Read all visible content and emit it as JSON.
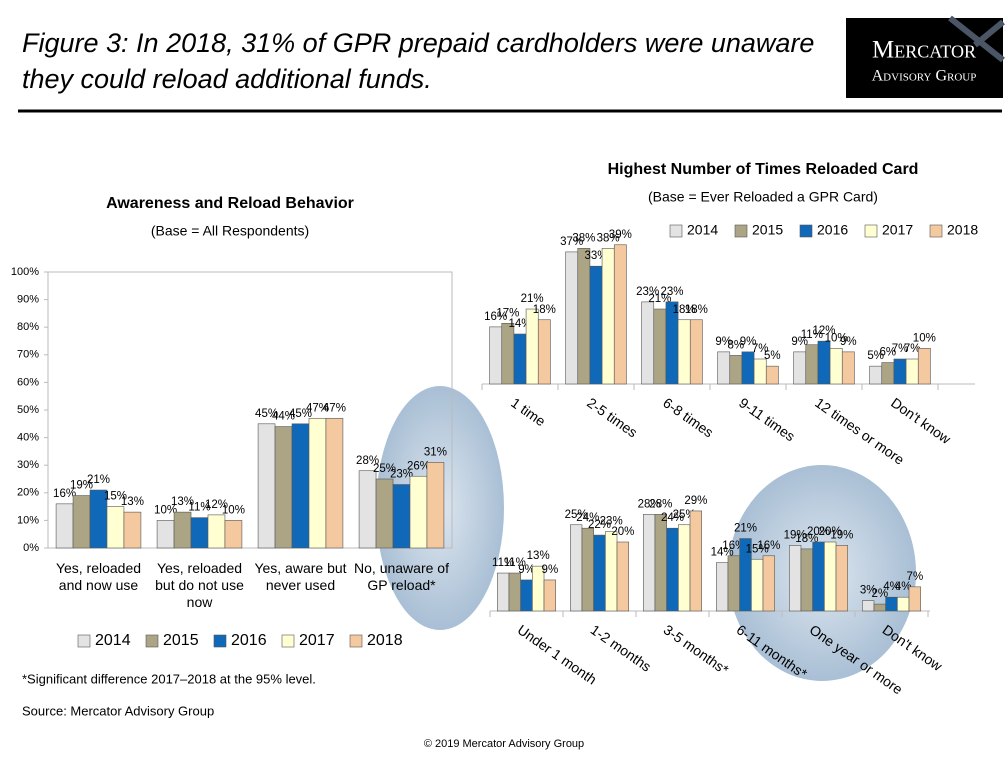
{
  "header": {
    "title": [
      "Figure 3: In 2018, 31% of GPR prepaid cardholders were unaware",
      "they could reload additional funds."
    ],
    "logo": [
      "Mercator",
      "Advisory Group"
    ]
  },
  "chart_data": [
    {
      "type": "bar",
      "title": "Awareness and Reload Behavior",
      "subtitle": "(Base = All Respondents)",
      "categories": [
        "Yes, reloaded and now use",
        "Yes, reloaded but do not use now",
        "Yes, aware but never used",
        "No, unaware of GP reload*"
      ],
      "series": [
        {
          "name": "2014",
          "color": "#e3e3e3",
          "values": [
            16,
            10,
            45,
            28
          ],
          "value_labels": [
            "16%",
            "10%",
            "45%",
            "28%"
          ]
        },
        {
          "name": "2015",
          "color": "#aba585",
          "values": [
            19,
            13,
            44,
            25
          ],
          "value_labels": [
            "19%",
            "13%",
            "44%",
            "25%"
          ]
        },
        {
          "name": "2016",
          "color": "#1068b8",
          "values": [
            21,
            11,
            45,
            23
          ],
          "value_labels": [
            "21%",
            "11%",
            "45%",
            "23%"
          ]
        },
        {
          "name": "2017",
          "color": "#ffffd2",
          "values": [
            15,
            12,
            47,
            26
          ],
          "value_labels": [
            "15%",
            "12%",
            "47%",
            "26%"
          ]
        },
        {
          "name": "2018",
          "color": "#f5c9a0",
          "values": [
            13,
            10,
            47,
            31
          ],
          "value_labels": [
            "13%",
            "10%",
            "47%",
            "31%"
          ]
        }
      ],
      "ylim": [
        0,
        100
      ],
      "yticks": [
        {
          "value": 0,
          "label": "0%"
        },
        {
          "value": 10,
          "label": "10%"
        },
        {
          "value": 20,
          "label": "20%"
        },
        {
          "value": 30,
          "label": "30%"
        },
        {
          "value": 40,
          "label": "40%"
        },
        {
          "value": 50,
          "label": "50%"
        },
        {
          "value": 60,
          "label": "60%"
        },
        {
          "value": 70,
          "label": "70%"
        },
        {
          "value": 80,
          "label": "80%"
        },
        {
          "value": 90,
          "label": "90%"
        },
        {
          "value": 100,
          "label": "100%"
        }
      ],
      "grid": false,
      "legend": "bottom"
    },
    {
      "type": "bar",
      "title": "Highest Number of Times Reloaded Card",
      "subtitle": "(Base = Ever Reloaded a GPR Card)",
      "categories": [
        "1 time",
        "2-5 times",
        "6-8 times",
        "9-11 times",
        "12 times or more",
        "Don't know"
      ],
      "series": [
        {
          "name": "2014",
          "color": "#e3e3e3",
          "values": [
            16,
            37,
            23,
            9,
            9,
            5
          ],
          "value_labels": [
            "16%",
            "37%",
            "23%",
            "9%",
            "9%",
            "5%"
          ]
        },
        {
          "name": "2015",
          "color": "#aba585",
          "values": [
            17,
            38,
            21,
            8,
            11,
            6
          ],
          "value_labels": [
            "17%",
            "38%",
            "21%",
            "8%",
            "11%",
            "6%"
          ]
        },
        {
          "name": "2016",
          "color": "#1068b8",
          "values": [
            14,
            33,
            23,
            9,
            12,
            7
          ],
          "value_labels": [
            "14%",
            "33%",
            "23%",
            "9%",
            "12%",
            "7%"
          ]
        },
        {
          "name": "2017",
          "color": "#ffffd2",
          "values": [
            21,
            38,
            18,
            7,
            10,
            7
          ],
          "value_labels": [
            "21%",
            "38%",
            "18%",
            "7%",
            "10%",
            "7%"
          ]
        },
        {
          "name": "2018",
          "color": "#f5c9a0",
          "values": [
            18,
            39,
            18,
            5,
            9,
            10
          ],
          "value_labels": [
            "18%",
            "39%",
            "18%",
            "5%",
            "9%",
            "10%"
          ]
        }
      ],
      "legend": "top"
    },
    {
      "type": "bar",
      "categories": [
        "Under 1 month",
        "1-2 months",
        "3-5 months*",
        "6-11 months*",
        "One year or more",
        "Don't know"
      ],
      "series": [
        {
          "name": "2014",
          "color": "#e3e3e3",
          "values": [
            11,
            25,
            28,
            14,
            19,
            3
          ],
          "value_labels": [
            "11%",
            "25%",
            "28%",
            "14%",
            "19%",
            "3%"
          ]
        },
        {
          "name": "2015",
          "color": "#aba585",
          "values": [
            11,
            24,
            28,
            16,
            18,
            2
          ],
          "value_labels": [
            "11%",
            "24%",
            "28%",
            "16%",
            "18%",
            "2%"
          ]
        },
        {
          "name": "2016",
          "color": "#1068b8",
          "values": [
            9,
            22,
            24,
            21,
            20,
            4
          ],
          "value_labels": [
            "9%",
            "22%",
            "24%",
            "21%",
            "20%",
            "4%"
          ]
        },
        {
          "name": "2017",
          "color": "#ffffd2",
          "values": [
            13,
            23,
            25,
            15,
            20,
            4
          ],
          "value_labels": [
            "13%",
            "23%",
            "25%",
            "15%",
            "20%",
            "4%"
          ]
        },
        {
          "name": "2018",
          "color": "#f5c9a0",
          "values": [
            9,
            20,
            29,
            16,
            19,
            7
          ],
          "value_labels": [
            "9%",
            "20%",
            "29%",
            "16%",
            "19%",
            "7%"
          ]
        }
      ]
    }
  ],
  "footnote": "*Significant difference 2017–2018 at the 95% level.",
  "source": "Source: Mercator Advisory Group",
  "copyright": "© 2019 Mercator Advisory Group"
}
